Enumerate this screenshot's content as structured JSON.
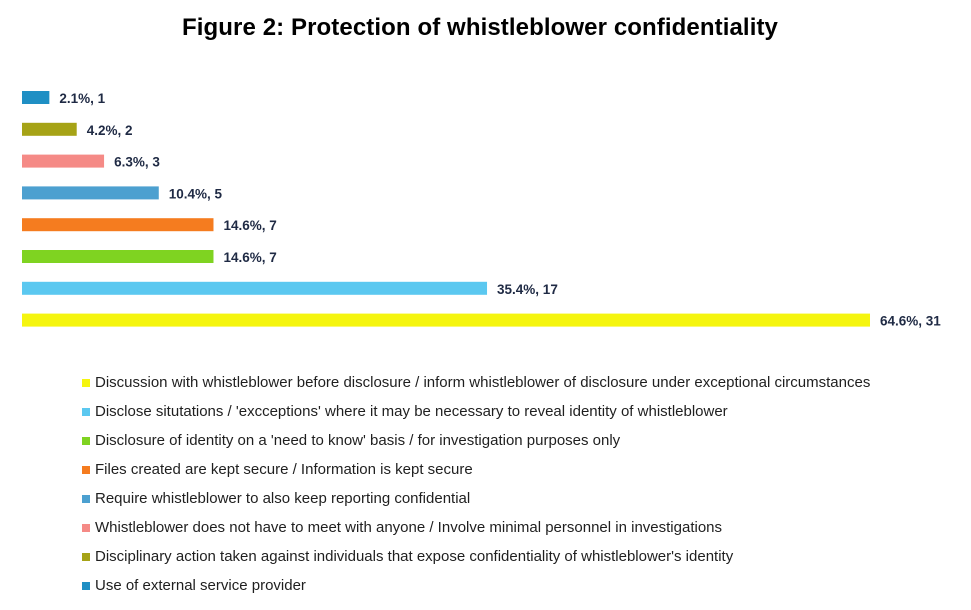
{
  "chart_data": {
    "type": "bar",
    "orientation": "horizontal",
    "title": "Figure 2: Protection of whistleblower confidentiality",
    "xlabel": "",
    "ylabel": "",
    "grid": false,
    "legend_position": "bottom",
    "value_scale_max": 31,
    "series": [
      {
        "name": "Use of external service provider",
        "percent": "2.1%",
        "count": 1,
        "color": "#1f8fc4",
        "label": "2.1%, 1"
      },
      {
        "name": "Disciplinary action taken against individuals that expose confidentiality of whistleblower's identity",
        "percent": "4.2%",
        "count": 2,
        "color": "#a6a316",
        "label": "4.2%, 2"
      },
      {
        "name": "Whistleblower does not have to meet with anyone / Involve minimal personnel in investigations",
        "percent": "6.3%",
        "count": 3,
        "color": "#f58a86",
        "label": "6.3%, 3"
      },
      {
        "name": "Require whistleblower to also keep reporting confidential",
        "percent": "10.4%",
        "count": 5,
        "color": "#4ca0d0",
        "label": "10.4%, 5"
      },
      {
        "name": "Files created are kept secure / Information is kept secure",
        "percent": "14.6%",
        "count": 7,
        "color": "#f57c1f",
        "label": "14.6%, 7"
      },
      {
        "name": "Disclosure of identity on a 'need to know' basis / for investigation purposes only",
        "percent": "14.6%",
        "count": 7,
        "color": "#7fd321",
        "label": "14.6%, 7"
      },
      {
        "name": "Disclose situtations  / 'excceptions'  where it may be necessary to reveal identity of whistleblower",
        "percent": "35.4%",
        "count": 17,
        "color": "#5bc8f0",
        "label": "35.4%, 17"
      },
      {
        "name": "Discussion with whistleblower before disclosure / inform whistleblower of disclosure under exceptional circumstances",
        "percent": "64.6%",
        "count": 31,
        "color": "#f5f50f",
        "label": "64.6%, 31"
      }
    ]
  },
  "legend": [
    {
      "label": "Discussion with whistleblower before disclosure / inform whistleblower of disclosure under exceptional circumstances",
      "color": "#f5f50f"
    },
    {
      "label": "Disclose situtations  / 'excceptions'  where it may be necessary to reveal identity of whistleblower",
      "color": "#5bc8f0"
    },
    {
      "label": "Disclosure of identity on a 'need to know' basis / for investigation purposes only",
      "color": "#7fd321"
    },
    {
      "label": "Files created are kept secure / Information is kept secure",
      "color": "#f57c1f"
    },
    {
      "label": "Require whistleblower to also keep reporting confidential",
      "color": "#4ca0d0"
    },
    {
      "label": "Whistleblower does not have to meet with anyone / Involve minimal personnel in investigations",
      "color": "#f58a86"
    },
    {
      "label": "Disciplinary action taken against individuals that expose confidentiality of whistleblower's identity",
      "color": "#a6a316"
    },
    {
      "label": "Use of external service provider",
      "color": "#1f8fc4"
    }
  ]
}
